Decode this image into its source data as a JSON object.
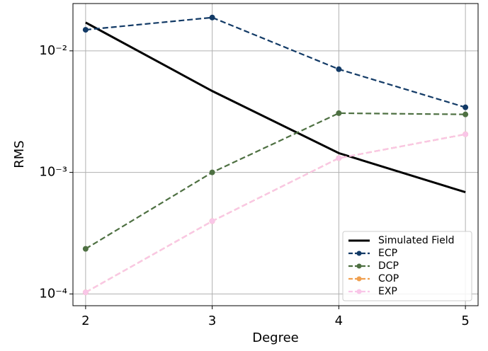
{
  "chart_data": {
    "type": "line",
    "x_label": "Degree",
    "y_label": "RMS",
    "x": [
      2,
      3,
      4,
      5
    ],
    "xlim": [
      1.9,
      5.1
    ],
    "xticks": [
      2,
      3,
      4,
      5
    ],
    "ylim": [
      8e-05,
      0.0245
    ],
    "log_y": true,
    "yticks": [
      {
        "value": 0.0001,
        "label": "10⁻⁴"
      },
      {
        "value": 0.001,
        "label": "10⁻³"
      },
      {
        "value": 0.01,
        "label": "10⁻²"
      }
    ],
    "grid": true,
    "legend": "lower right",
    "series": [
      {
        "name": "Simulated Field",
        "color": "#000000",
        "linestyle": "solid",
        "marker": false,
        "values": [
          0.0171,
          0.00467,
          0.00144,
          0.000687
        ]
      },
      {
        "name": "ECP",
        "color": "#123a66",
        "linestyle": "dashed",
        "marker": true,
        "values": [
          0.0149,
          0.0188,
          0.00706,
          0.00343
        ]
      },
      {
        "name": "DCP",
        "color": "#4e7042",
        "linestyle": "dashed",
        "marker": true,
        "values": [
          0.000235,
          0.001,
          0.00307,
          0.003
        ]
      },
      {
        "name": "COP",
        "color": "#f0a050",
        "linestyle": "dashed",
        "marker": true,
        "values": [
          0.000103,
          0.000397,
          0.00131,
          0.00206
        ]
      },
      {
        "name": "EXP",
        "color": "#f9c6e8",
        "linestyle": "dashed",
        "marker": true,
        "values": [
          0.000103,
          0.000397,
          0.00131,
          0.00206
        ]
      }
    ]
  }
}
